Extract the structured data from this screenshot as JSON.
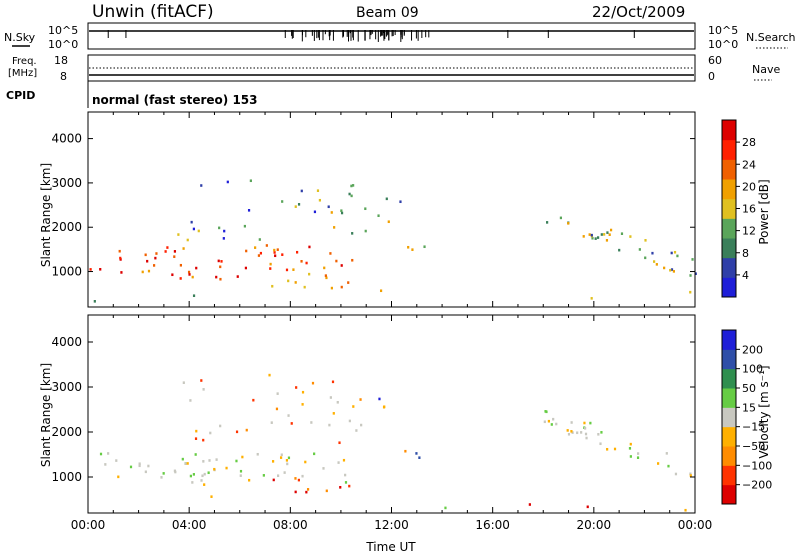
{
  "header": {
    "station": "Unwin (fitACF)",
    "beam": "Beam 09",
    "date": "22/Oct/2009"
  },
  "noise_panel": {
    "left_label": "N.Sky",
    "right_label": "N.Search",
    "left_ticks": [
      "10^5",
      "10^0"
    ],
    "right_ticks": [
      "10^5",
      "10^0"
    ]
  },
  "freq_panel": {
    "left_label_1": "Freq.",
    "left_label_2": "[MHz]",
    "right_label": "Nave",
    "left_ticks": [
      "18",
      "8"
    ],
    "right_ticks": [
      "60",
      "0"
    ]
  },
  "cpid": {
    "label": "CPID",
    "text": "normal (fast stereo) 153"
  },
  "colors": {
    "power": [
      "#1f1fd8",
      "#2f3fa8",
      "#3a7f5a",
      "#5aa55a",
      "#e0c020",
      "#f0a000",
      "#f06000",
      "#ff2000",
      "#dd0000"
    ],
    "velocity": [
      "#dd0000",
      "#ff3300",
      "#ff8c00",
      "#ffb000",
      "#c8c8c0",
      "#66cc44",
      "#2f8f4f",
      "#2f4fa8",
      "#1f1fd8"
    ]
  },
  "chart_data": [
    {
      "type": "heatmap",
      "quantity": "power",
      "xlabel": "",
      "ylabel": "Slant Range [km]",
      "xlim": [
        "00:00",
        "24:00"
      ],
      "ylim": [
        200,
        4600
      ],
      "yticks": [
        "1000",
        "2000",
        "3000",
        "4000"
      ],
      "colorbar": {
        "label": "Power [dB]",
        "ticks": [
          "4",
          "8",
          "12",
          "16",
          "20",
          "24",
          "28"
        ],
        "range": [
          0,
          32
        ]
      },
      "features": [
        {
          "band": "main",
          "t_start": "00:00",
          "t_end": "10:30",
          "range_km": [
            900,
            1600
          ],
          "peak_db": 28
        },
        {
          "band": "upper",
          "t_start": "03:30",
          "t_end": "10:30",
          "range_km": [
            1800,
            3300
          ],
          "peak_db": 14
        },
        {
          "band": "late",
          "t_start": "18:00",
          "t_end": "24:00",
          "range_km": [
            900,
            2400
          ],
          "peak_db": 16
        }
      ]
    },
    {
      "type": "heatmap",
      "quantity": "velocity",
      "xlabel": "Time UT",
      "ylabel": "Slant Range [km]",
      "xlim": [
        "00:00",
        "24:00"
      ],
      "ylim": [
        200,
        4600
      ],
      "yticks": [
        "1000",
        "2000",
        "3000",
        "4000"
      ],
      "xticks": [
        "00:00",
        "04:00",
        "08:00",
        "12:00",
        "16:00",
        "20:00",
        "00:00"
      ],
      "colorbar": {
        "label": "Velocity [m s⁻¹]",
        "ticks": [
          "200",
          "100",
          "50",
          "15",
          "−15",
          "−50",
          "−100",
          "−200"
        ]
      }
    }
  ]
}
